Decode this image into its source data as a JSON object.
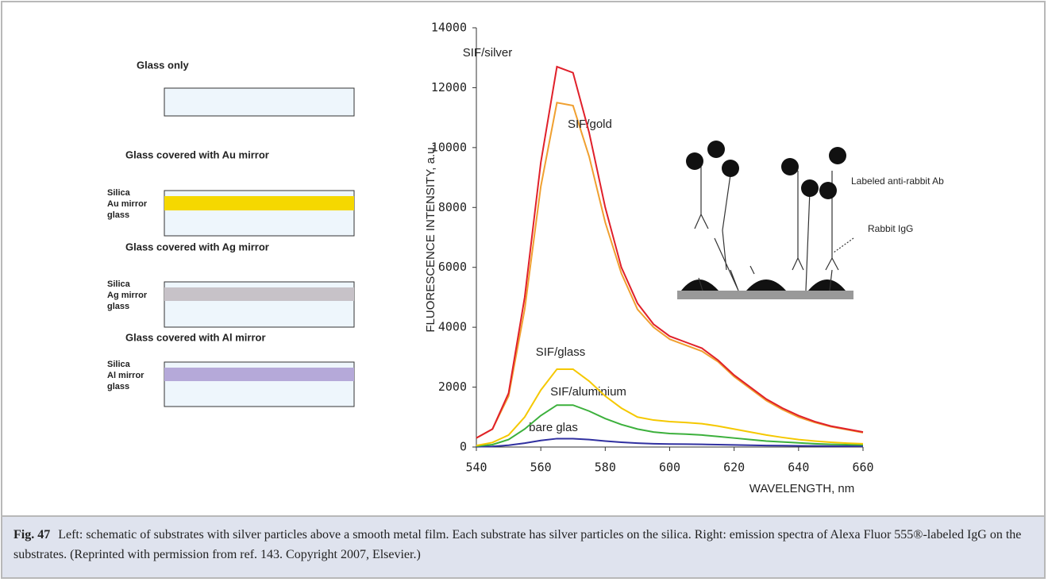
{
  "chart_data": {
    "type": "line",
    "xlabel": "WAVELENGTH, nm",
    "ylabel": "FLUORESCENCE INTENSITY, a.u.",
    "x": [
      540,
      545,
      550,
      555,
      560,
      565,
      570,
      575,
      580,
      585,
      590,
      595,
      600,
      605,
      610,
      615,
      620,
      625,
      630,
      635,
      640,
      645,
      650,
      655,
      660
    ],
    "series": [
      {
        "name": "SIF/silver",
        "color": "#e0202a",
        "values": [
          300,
          600,
          1800,
          5000,
          9500,
          12700,
          12500,
          10500,
          8000,
          6000,
          4800,
          4100,
          3700,
          3500,
          3300,
          2900,
          2400,
          2000,
          1600,
          1300,
          1050,
          850,
          700,
          600,
          500
        ]
      },
      {
        "name": "SIF/gold",
        "color": "#f0a030",
        "values": [
          300,
          600,
          1700,
          4600,
          8700,
          11500,
          11400,
          9700,
          7500,
          5800,
          4600,
          4000,
          3600,
          3400,
          3200,
          2850,
          2350,
          1950,
          1550,
          1250,
          1000,
          820,
          680,
          580,
          480
        ]
      },
      {
        "name": "SIF/glass",
        "color": "#f5c800",
        "values": [
          50,
          150,
          400,
          1000,
          1900,
          2600,
          2600,
          2200,
          1700,
          1300,
          1000,
          900,
          850,
          820,
          780,
          700,
          600,
          500,
          400,
          320,
          250,
          200,
          160,
          130,
          110
        ]
      },
      {
        "name": "SIF/aluminium",
        "color": "#3cb03c",
        "values": [
          30,
          80,
          250,
          600,
          1050,
          1400,
          1400,
          1200,
          950,
          750,
          600,
          500,
          450,
          430,
          400,
          350,
          300,
          250,
          200,
          170,
          140,
          110,
          90,
          80,
          70
        ]
      },
      {
        "name": "bare glas",
        "color": "#3030a0",
        "values": [
          10,
          20,
          60,
          130,
          220,
          280,
          280,
          250,
          200,
          160,
          130,
          110,
          100,
          95,
          90,
          80,
          70,
          60,
          50,
          45,
          40,
          35,
          30,
          25,
          25
        ]
      }
    ],
    "xlim": [
      540,
      660
    ],
    "xticks": [
      540,
      560,
      580,
      600,
      620,
      640,
      660
    ],
    "ylim": [
      0,
      14000
    ],
    "yticks": [
      0,
      2000,
      4000,
      6000,
      8000,
      10000,
      12000,
      14000
    ]
  },
  "schematic": {
    "panels": [
      {
        "title": "Glass only",
        "layers": []
      },
      {
        "title": "Glass covered with Au mirror",
        "layers": [
          "Silica",
          "Au mirror",
          "glass"
        ]
      },
      {
        "title": "Glass covered with Ag mirror",
        "layers": [
          "Silica",
          "Ag mirror",
          "glass"
        ]
      },
      {
        "title": "Glass covered with Al mirror",
        "layers": [
          "Silica",
          "Al mirror",
          "glass"
        ]
      }
    ]
  },
  "inset": {
    "antibody_label": "Labeled anti-rabbit Ab",
    "igg_label": "Rabbit IgG"
  },
  "caption": {
    "label": "Fig. 47",
    "text": "Left: schematic of substrates with silver particles above a smooth metal film. Each substrate has silver particles on the silica. Right: emission spectra of Alexa Fluor 555®-labeled IgG on the substrates. (Reprinted with permission from ref. 143. Copyright 2007, Elsevier.)"
  }
}
